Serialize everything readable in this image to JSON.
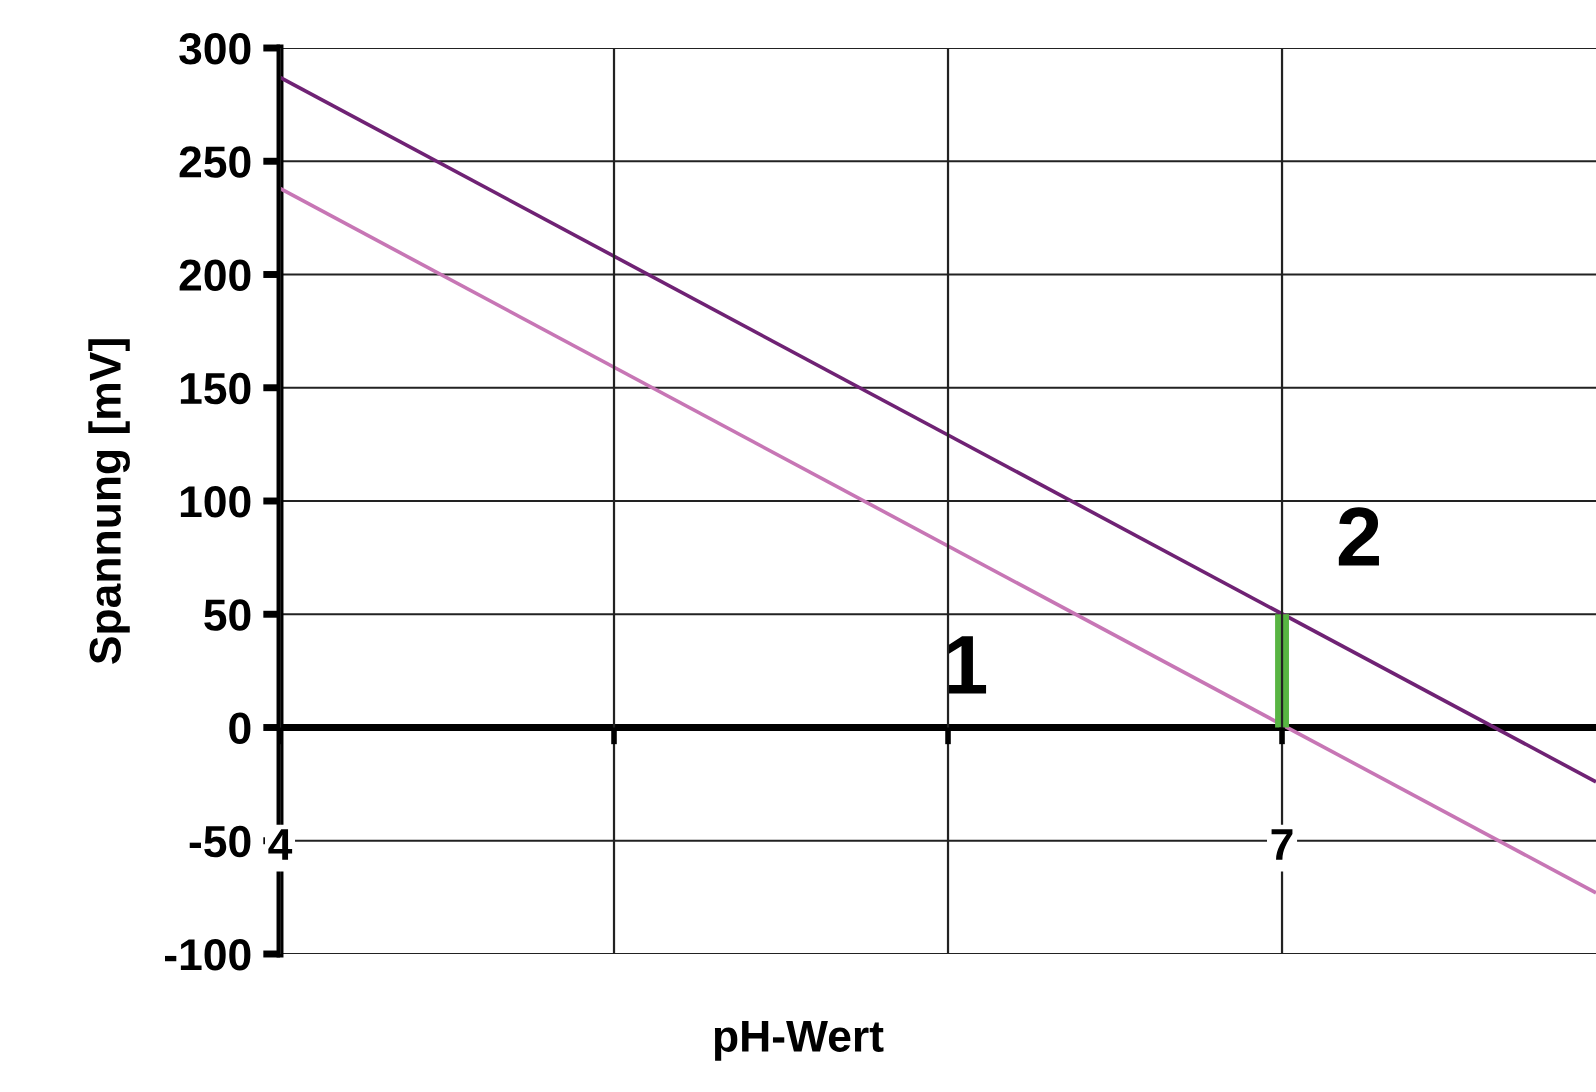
{
  "chart_data": {
    "type": "line",
    "xlabel": "pH-Wert",
    "ylabel": "Spannung [mV]",
    "xlim": [
      4,
      7.94
    ],
    "ylim": [
      -100,
      300
    ],
    "xticks": [
      4,
      {
        "value": 5,
        "label": null
      },
      {
        "value": 6,
        "label": null
      },
      7
    ],
    "yticks": [
      -100,
      -50,
      0,
      50,
      100,
      150,
      200,
      250,
      300
    ],
    "grid": true,
    "marker": "none",
    "line_style": "solid",
    "series": [
      {
        "name": "1",
        "color": "#c776b5",
        "x": [
          4,
          7.94
        ],
        "values": [
          238,
          -73
        ]
      },
      {
        "name": "2",
        "color": "#6f2274",
        "x": [
          4,
          7.94
        ],
        "values": [
          287,
          -24
        ]
      },
      {
        "color": "#58b543",
        "x": [
          7,
          7
        ],
        "values": [
          0,
          50
        ]
      }
    ]
  }
}
